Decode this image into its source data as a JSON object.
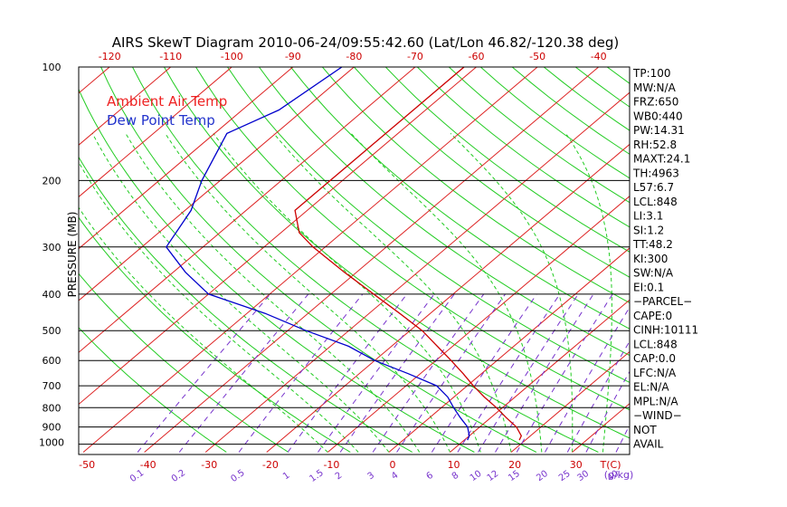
{
  "title": "AIRS SkewT Diagram 2010-06-24/09:55:42.60 (Lat/Lon 46.82/-120.38 deg)",
  "chart_data": {
    "type": "line",
    "title": "AIRS SkewT Diagram 2010-06-24/09:55:42.60 (Lat/Lon 46.82/-120.38 deg)",
    "ylabel": "PRESSURE (MB)",
    "y_scale": "log",
    "y_range": [
      1050,
      100
    ],
    "x_bottom_temp_ticks": [
      -50,
      -40,
      -30,
      -20,
      -10,
      0,
      10,
      20,
      30
    ],
    "x_bottom_temp_unit_label": "T(C)",
    "x_top_temp_ticks": [
      -120,
      -110,
      -100,
      -90,
      -80,
      -70,
      -60,
      -50,
      -40
    ],
    "pressure_ticks": [
      100,
      200,
      300,
      400,
      500,
      600,
      700,
      800,
      900,
      1000
    ],
    "mixing_ratio_labels": [
      "0.1",
      "0.2",
      "0.5",
      "1",
      "1.5",
      "2",
      "3",
      "4",
      "6",
      "8",
      "10",
      "12",
      "15",
      "20",
      "25",
      "30",
      "40"
    ],
    "mixing_ratio_unit_label": "(g/kg)",
    "legend": [
      {
        "label": "Ambient Air Temp",
        "color": "#ee2222"
      },
      {
        "label": "Dew Point Temp",
        "color": "#2233cc"
      }
    ],
    "series": [
      {
        "name": "Ambient Air Temp",
        "color": "#cc0000",
        "points": [
          {
            "p": 100,
            "t": -62.0
          },
          {
            "p": 130,
            "t": -62.0
          },
          {
            "p": 160,
            "t": -62.0
          },
          {
            "p": 200,
            "t": -62.0
          },
          {
            "p": 240,
            "t": -62.0
          },
          {
            "p": 275,
            "t": -57.0
          },
          {
            "p": 300,
            "t": -52.0
          },
          {
            "p": 350,
            "t": -42.0
          },
          {
            "p": 400,
            "t": -33.0
          },
          {
            "p": 450,
            "t": -25.0
          },
          {
            "p": 500,
            "t": -18.0
          },
          {
            "p": 550,
            "t": -12.5
          },
          {
            "p": 600,
            "t": -7.5
          },
          {
            "p": 650,
            "t": -3.0
          },
          {
            "p": 700,
            "t": 1.0
          },
          {
            "p": 750,
            "t": 5.0
          },
          {
            "p": 800,
            "t": 9.0
          },
          {
            "p": 850,
            "t": 12.5
          },
          {
            "p": 900,
            "t": 16.0
          },
          {
            "p": 950,
            "t": 18.5
          },
          {
            "p": 975,
            "t": 19.0
          }
        ]
      },
      {
        "name": "Dew Point Temp",
        "color": "#0000cc",
        "points": [
          {
            "p": 100,
            "t": -82.0
          },
          {
            "p": 130,
            "t": -84.0
          },
          {
            "p": 150,
            "t": -88.0
          },
          {
            "p": 200,
            "t": -83.0
          },
          {
            "p": 240,
            "t": -79.0
          },
          {
            "p": 300,
            "t": -76.0
          },
          {
            "p": 350,
            "t": -68.0
          },
          {
            "p": 400,
            "t": -60.0
          },
          {
            "p": 450,
            "t": -47.0
          },
          {
            "p": 500,
            "t": -37.0
          },
          {
            "p": 550,
            "t": -27.0
          },
          {
            "p": 600,
            "t": -20.0
          },
          {
            "p": 650,
            "t": -12.0
          },
          {
            "p": 700,
            "t": -5.0
          },
          {
            "p": 750,
            "t": -1.0
          },
          {
            "p": 800,
            "t": 2.0
          },
          {
            "p": 850,
            "t": 5.0
          },
          {
            "p": 900,
            "t": 8.0
          },
          {
            "p": 950,
            "t": 10.0
          },
          {
            "p": 975,
            "t": 10.5
          }
        ]
      }
    ],
    "indices": [
      "TP:100",
      "MW:N/A",
      "FRZ:650",
      "WB0:440",
      "PW:14.31",
      "RH:52.8",
      "MAXT:24.1",
      "TH:4963",
      "L57:6.7",
      "LCL:848",
      "LI:3.1",
      "SI:1.2",
      "TT:48.2",
      "KI:300",
      "SW:N/A",
      "EI:0.1",
      "−PARCEL−",
      "CAPE:0",
      "CINH:10111",
      "LCL:848",
      "CAP:0.0",
      "LFC:N/A",
      "EL:N/A",
      "MPL:N/A",
      "−WIND−",
      "NOT",
      "AVAIL"
    ],
    "grid": true
  }
}
